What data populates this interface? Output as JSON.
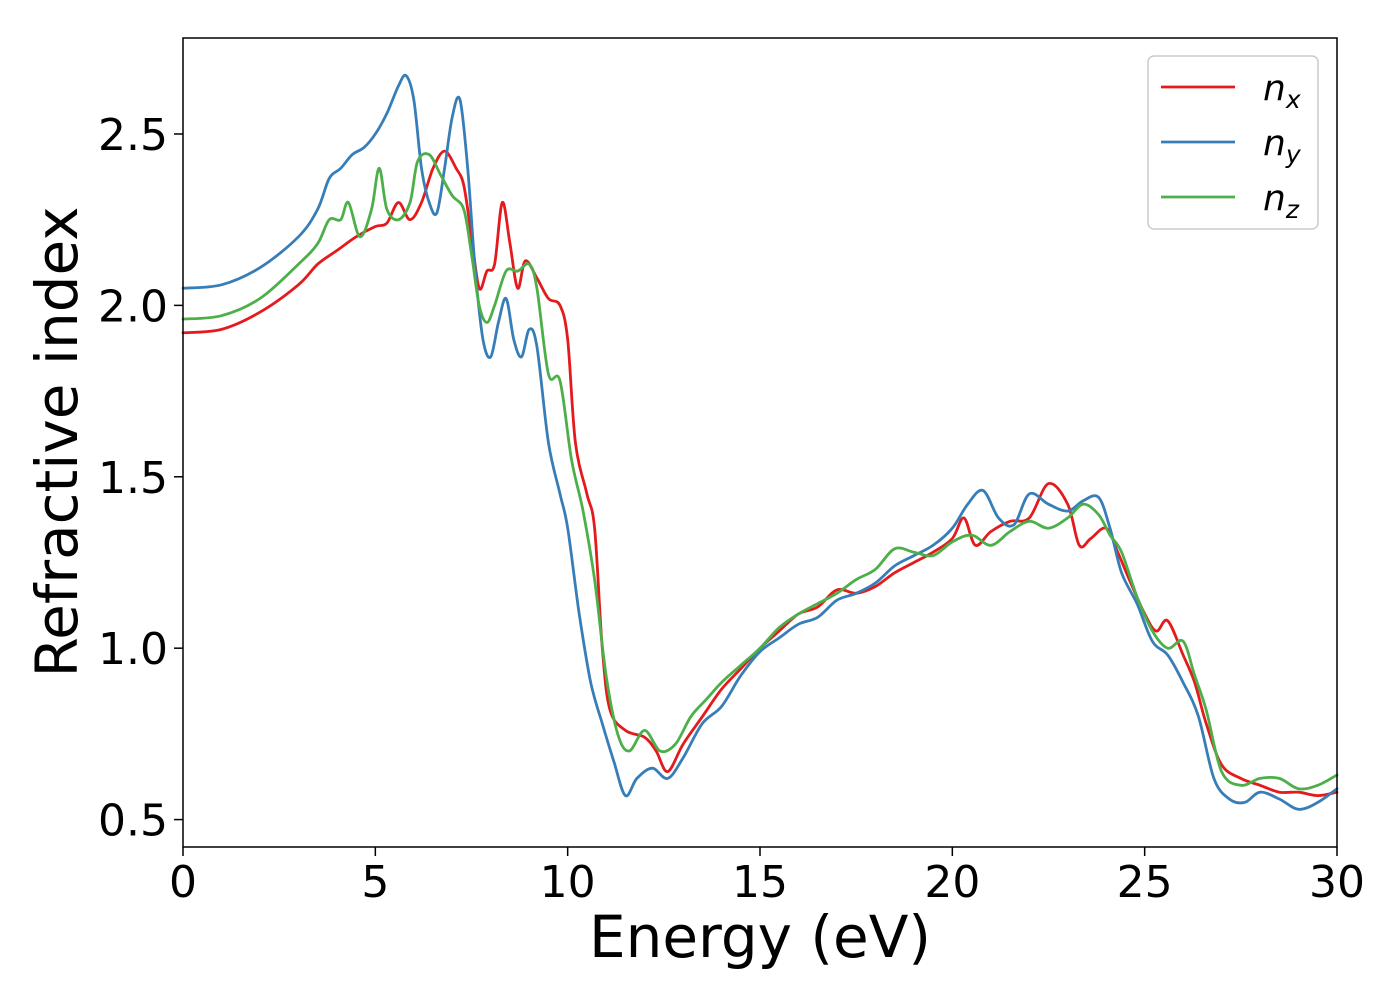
{
  "chart_data": {
    "type": "line",
    "xlabel": "Energy (eV)",
    "ylabel": "Refractive index",
    "xlim": [
      0,
      30
    ],
    "ylim": [
      0.42,
      2.78
    ],
    "xticks": [
      0,
      5,
      10,
      15,
      20,
      25,
      30
    ],
    "xtick_labels": [
      "0",
      "5",
      "10",
      "15",
      "20",
      "25",
      "30"
    ],
    "yticks": [
      0.5,
      1.0,
      1.5,
      2.0,
      2.5
    ],
    "ytick_labels": [
      "0.5",
      "1.0",
      "1.5",
      "2.0",
      "2.5"
    ],
    "grid": false,
    "legend_position": "top-right",
    "series": [
      {
        "name": "n",
        "subscript": "x",
        "color": "#e41a1c",
        "points": [
          [
            0,
            1.92
          ],
          [
            1,
            1.93
          ],
          [
            2,
            1.98
          ],
          [
            3,
            2.06
          ],
          [
            3.5,
            2.12
          ],
          [
            4,
            2.16
          ],
          [
            4.5,
            2.2
          ],
          [
            5,
            2.23
          ],
          [
            5.3,
            2.24
          ],
          [
            5.6,
            2.3
          ],
          [
            5.9,
            2.25
          ],
          [
            6.2,
            2.3
          ],
          [
            6.5,
            2.4
          ],
          [
            6.8,
            2.45
          ],
          [
            7.1,
            2.4
          ],
          [
            7.3,
            2.35
          ],
          [
            7.5,
            2.2
          ],
          [
            7.7,
            2.05
          ],
          [
            7.9,
            2.1
          ],
          [
            8.1,
            2.12
          ],
          [
            8.3,
            2.3
          ],
          [
            8.5,
            2.18
          ],
          [
            8.7,
            2.05
          ],
          [
            8.9,
            2.13
          ],
          [
            9.2,
            2.08
          ],
          [
            9.5,
            2.02
          ],
          [
            9.8,
            2.0
          ],
          [
            10.0,
            1.9
          ],
          [
            10.2,
            1.6
          ],
          [
            10.5,
            1.45
          ],
          [
            10.7,
            1.35
          ],
          [
            10.9,
            1.0
          ],
          [
            11.1,
            0.82
          ],
          [
            11.5,
            0.76
          ],
          [
            12.0,
            0.74
          ],
          [
            12.3,
            0.7
          ],
          [
            12.6,
            0.64
          ],
          [
            13.0,
            0.72
          ],
          [
            13.5,
            0.8
          ],
          [
            14.0,
            0.88
          ],
          [
            14.5,
            0.94
          ],
          [
            15.0,
            1.0
          ],
          [
            15.5,
            1.05
          ],
          [
            16.0,
            1.1
          ],
          [
            16.5,
            1.12
          ],
          [
            17.0,
            1.17
          ],
          [
            17.5,
            1.16
          ],
          [
            18.0,
            1.18
          ],
          [
            18.5,
            1.22
          ],
          [
            19.0,
            1.25
          ],
          [
            19.5,
            1.28
          ],
          [
            20.0,
            1.32
          ],
          [
            20.3,
            1.38
          ],
          [
            20.6,
            1.3
          ],
          [
            21.0,
            1.34
          ],
          [
            21.5,
            1.37
          ],
          [
            22.0,
            1.38
          ],
          [
            22.5,
            1.48
          ],
          [
            23.0,
            1.42
          ],
          [
            23.3,
            1.3
          ],
          [
            23.6,
            1.32
          ],
          [
            24.0,
            1.35
          ],
          [
            24.3,
            1.28
          ],
          [
            24.6,
            1.2
          ],
          [
            25.0,
            1.1
          ],
          [
            25.3,
            1.05
          ],
          [
            25.6,
            1.08
          ],
          [
            26.0,
            0.98
          ],
          [
            26.3,
            0.9
          ],
          [
            26.6,
            0.78
          ],
          [
            27.0,
            0.66
          ],
          [
            27.5,
            0.62
          ],
          [
            28.0,
            0.6
          ],
          [
            28.5,
            0.58
          ],
          [
            29.0,
            0.58
          ],
          [
            29.5,
            0.57
          ],
          [
            30.0,
            0.58
          ]
        ]
      },
      {
        "name": "n",
        "subscript": "y",
        "color": "#377eb8",
        "points": [
          [
            0,
            2.05
          ],
          [
            1,
            2.06
          ],
          [
            2,
            2.11
          ],
          [
            3,
            2.2
          ],
          [
            3.5,
            2.28
          ],
          [
            3.8,
            2.37
          ],
          [
            4.1,
            2.4
          ],
          [
            4.4,
            2.44
          ],
          [
            4.7,
            2.46
          ],
          [
            5.0,
            2.5
          ],
          [
            5.3,
            2.56
          ],
          [
            5.6,
            2.64
          ],
          [
            5.8,
            2.67
          ],
          [
            6.0,
            2.6
          ],
          [
            6.2,
            2.4
          ],
          [
            6.4,
            2.3
          ],
          [
            6.6,
            2.27
          ],
          [
            6.8,
            2.4
          ],
          [
            7.0,
            2.55
          ],
          [
            7.2,
            2.6
          ],
          [
            7.4,
            2.4
          ],
          [
            7.6,
            2.1
          ],
          [
            7.8,
            1.9
          ],
          [
            8.0,
            1.85
          ],
          [
            8.2,
            1.95
          ],
          [
            8.4,
            2.02
          ],
          [
            8.6,
            1.9
          ],
          [
            8.8,
            1.85
          ],
          [
            9.0,
            1.93
          ],
          [
            9.2,
            1.88
          ],
          [
            9.5,
            1.6
          ],
          [
            9.8,
            1.45
          ],
          [
            10.0,
            1.35
          ],
          [
            10.3,
            1.1
          ],
          [
            10.6,
            0.9
          ],
          [
            10.9,
            0.78
          ],
          [
            11.2,
            0.67
          ],
          [
            11.5,
            0.57
          ],
          [
            11.8,
            0.62
          ],
          [
            12.2,
            0.65
          ],
          [
            12.6,
            0.62
          ],
          [
            13.0,
            0.68
          ],
          [
            13.5,
            0.78
          ],
          [
            14.0,
            0.83
          ],
          [
            14.5,
            0.92
          ],
          [
            15.0,
            0.99
          ],
          [
            15.5,
            1.03
          ],
          [
            16.0,
            1.07
          ],
          [
            16.5,
            1.09
          ],
          [
            17.0,
            1.14
          ],
          [
            17.5,
            1.16
          ],
          [
            18.0,
            1.19
          ],
          [
            18.5,
            1.24
          ],
          [
            19.0,
            1.27
          ],
          [
            19.5,
            1.3
          ],
          [
            20.0,
            1.35
          ],
          [
            20.4,
            1.42
          ],
          [
            20.8,
            1.46
          ],
          [
            21.2,
            1.38
          ],
          [
            21.6,
            1.36
          ],
          [
            22.0,
            1.45
          ],
          [
            22.5,
            1.42
          ],
          [
            23.0,
            1.4
          ],
          [
            23.4,
            1.43
          ],
          [
            23.8,
            1.44
          ],
          [
            24.1,
            1.35
          ],
          [
            24.4,
            1.22
          ],
          [
            24.8,
            1.13
          ],
          [
            25.2,
            1.02
          ],
          [
            25.6,
            0.98
          ],
          [
            26.0,
            0.9
          ],
          [
            26.4,
            0.8
          ],
          [
            26.8,
            0.62
          ],
          [
            27.2,
            0.56
          ],
          [
            27.6,
            0.55
          ],
          [
            28.0,
            0.58
          ],
          [
            28.5,
            0.56
          ],
          [
            29.0,
            0.53
          ],
          [
            29.5,
            0.55
          ],
          [
            30.0,
            0.59
          ]
        ]
      },
      {
        "name": "n",
        "subscript": "z",
        "color": "#4daf4a",
        "points": [
          [
            0,
            1.96
          ],
          [
            1,
            1.97
          ],
          [
            2,
            2.02
          ],
          [
            3,
            2.12
          ],
          [
            3.5,
            2.18
          ],
          [
            3.8,
            2.25
          ],
          [
            4.1,
            2.25
          ],
          [
            4.3,
            2.3
          ],
          [
            4.6,
            2.2
          ],
          [
            4.9,
            2.28
          ],
          [
            5.1,
            2.4
          ],
          [
            5.3,
            2.28
          ],
          [
            5.6,
            2.25
          ],
          [
            5.9,
            2.3
          ],
          [
            6.1,
            2.42
          ],
          [
            6.4,
            2.44
          ],
          [
            6.7,
            2.38
          ],
          [
            7.0,
            2.32
          ],
          [
            7.3,
            2.28
          ],
          [
            7.5,
            2.15
          ],
          [
            7.7,
            2.0
          ],
          [
            7.9,
            1.95
          ],
          [
            8.1,
            2.0
          ],
          [
            8.4,
            2.1
          ],
          [
            8.7,
            2.1
          ],
          [
            9.0,
            2.12
          ],
          [
            9.2,
            2.05
          ],
          [
            9.5,
            1.8
          ],
          [
            9.8,
            1.78
          ],
          [
            10.1,
            1.55
          ],
          [
            10.4,
            1.4
          ],
          [
            10.7,
            1.2
          ],
          [
            11.0,
            0.92
          ],
          [
            11.3,
            0.75
          ],
          [
            11.6,
            0.7
          ],
          [
            12.0,
            0.76
          ],
          [
            12.4,
            0.7
          ],
          [
            12.8,
            0.72
          ],
          [
            13.2,
            0.8
          ],
          [
            13.6,
            0.85
          ],
          [
            14.0,
            0.9
          ],
          [
            14.5,
            0.95
          ],
          [
            15.0,
            1.0
          ],
          [
            15.5,
            1.06
          ],
          [
            16.0,
            1.1
          ],
          [
            16.5,
            1.13
          ],
          [
            17.0,
            1.16
          ],
          [
            17.5,
            1.2
          ],
          [
            18.0,
            1.23
          ],
          [
            18.5,
            1.29
          ],
          [
            19.0,
            1.28
          ],
          [
            19.5,
            1.27
          ],
          [
            20.0,
            1.31
          ],
          [
            20.5,
            1.33
          ],
          [
            21.0,
            1.3
          ],
          [
            21.5,
            1.34
          ],
          [
            22.0,
            1.37
          ],
          [
            22.5,
            1.35
          ],
          [
            23.0,
            1.38
          ],
          [
            23.4,
            1.42
          ],
          [
            23.8,
            1.39
          ],
          [
            24.1,
            1.33
          ],
          [
            24.4,
            1.28
          ],
          [
            24.8,
            1.15
          ],
          [
            25.2,
            1.05
          ],
          [
            25.6,
            1.0
          ],
          [
            26.0,
            1.02
          ],
          [
            26.3,
            0.92
          ],
          [
            26.6,
            0.82
          ],
          [
            27.0,
            0.64
          ],
          [
            27.5,
            0.6
          ],
          [
            28.0,
            0.62
          ],
          [
            28.5,
            0.62
          ],
          [
            29.0,
            0.59
          ],
          [
            29.5,
            0.6
          ],
          [
            30.0,
            0.63
          ]
        ]
      }
    ]
  }
}
